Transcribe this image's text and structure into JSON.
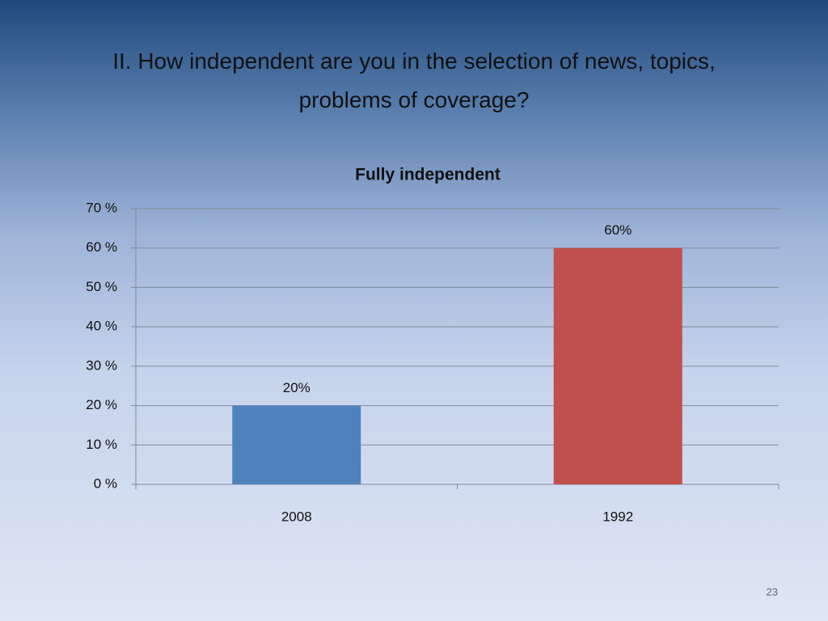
{
  "slide_title": "II. How independent are you in the selection of news, topics, problems of coverage?",
  "page_number": "23",
  "chart_data": {
    "type": "bar",
    "title": "Fully independent",
    "categories": [
      "2008",
      "1992"
    ],
    "values": [
      20,
      60
    ],
    "value_labels": [
      "20%",
      "60%"
    ],
    "colors": [
      "#4f81bd",
      "#c0504d"
    ],
    "ylim": [
      0,
      70
    ],
    "yticks": [
      {
        "value": 0,
        "label": "0 %"
      },
      {
        "value": 10,
        "label": "10 %"
      },
      {
        "value": 20,
        "label": "20 %"
      },
      {
        "value": 30,
        "label": "30 %"
      },
      {
        "value": 40,
        "label": "40 %"
      },
      {
        "value": 50,
        "label": "50 %"
      },
      {
        "value": 60,
        "label": "60 %"
      },
      {
        "value": 70,
        "label": "70 %"
      }
    ],
    "grid": true
  }
}
